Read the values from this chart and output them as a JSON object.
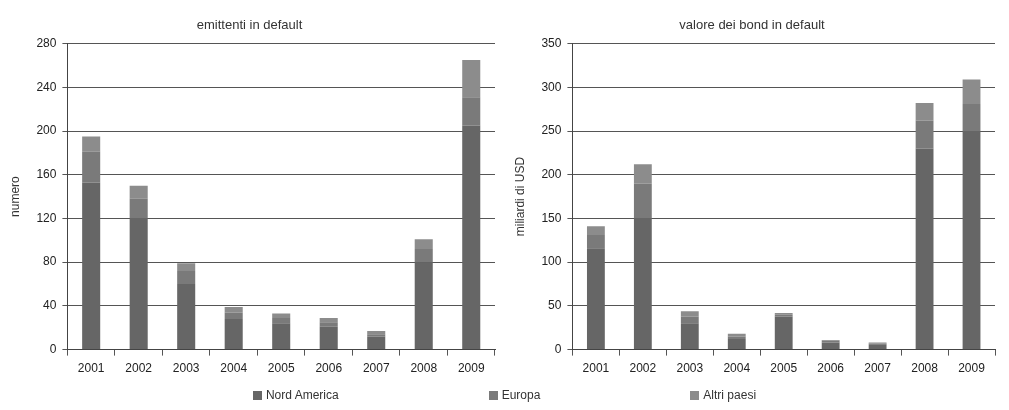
{
  "chart_data": [
    {
      "type": "bar",
      "title": "emittenti in default",
      "ylabel": "numero",
      "categories": [
        "2001",
        "2002",
        "2003",
        "2004",
        "2005",
        "2006",
        "2007",
        "2008",
        "2009"
      ],
      "stacked": true,
      "ylim": [
        0,
        280
      ],
      "yticks": [
        0,
        40,
        80,
        120,
        160,
        200,
        240,
        280
      ],
      "grid": "y",
      "legend": "bottom",
      "series": [
        {
          "name": "Nord America",
          "color": "#666666",
          "values": [
            153,
            120,
            60,
            28,
            24,
            21,
            12,
            80,
            205
          ]
        },
        {
          "name": "Europa",
          "color": "#7a7a7a",
          "values": [
            28,
            18,
            12,
            6,
            5,
            4,
            2,
            12,
            26
          ]
        },
        {
          "name": "Altri paesi",
          "color": "#8c8c8c",
          "values": [
            14,
            12,
            7,
            5,
            4,
            4,
            3,
            9,
            34
          ]
        }
      ]
    },
    {
      "type": "bar",
      "title": "valore dei bond in default",
      "ylabel": "miliardi di USD",
      "categories": [
        "2001",
        "2002",
        "2003",
        "2004",
        "2005",
        "2006",
        "2007",
        "2008",
        "2009"
      ],
      "stacked": true,
      "ylim": [
        0,
        350
      ],
      "yticks": [
        0,
        50,
        100,
        150,
        200,
        250,
        300,
        350
      ],
      "grid": "y",
      "series": [
        {
          "color": "#666666",
          "values": [
            116,
            150,
            30,
            12,
            38,
            8,
            6,
            230,
            250
          ]
        },
        {
          "color": "#7a7a7a",
          "values": [
            15,
            40,
            8,
            3,
            2,
            2,
            1,
            32,
            31
          ]
        },
        {
          "color": "#8c8c8c",
          "values": [
            10,
            22,
            6,
            3,
            2,
            1,
            1,
            20,
            28
          ]
        }
      ]
    }
  ]
}
